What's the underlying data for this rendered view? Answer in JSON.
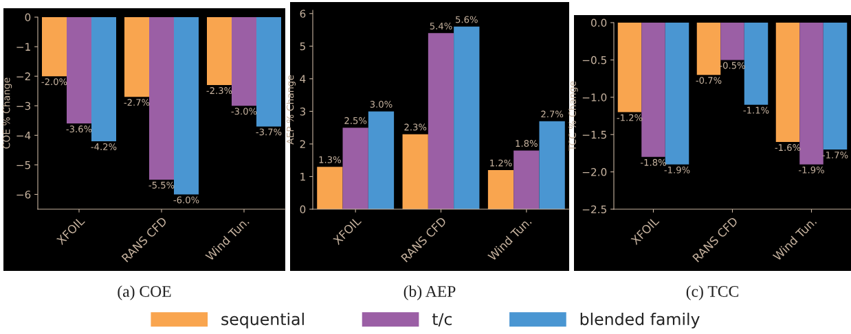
{
  "chart_data": [
    {
      "type": "bar",
      "title": "(a) COE",
      "ylabel": "COE % Change",
      "categories": [
        "XFOIL",
        "RANS CFD",
        "Wind Tun."
      ],
      "ylim": [
        -6.5,
        0
      ],
      "yticks": [
        {
          "value": 0,
          "label": "0"
        },
        {
          "value": -1,
          "label": "−1"
        },
        {
          "value": -2,
          "label": "−2"
        },
        {
          "value": -3,
          "label": "−3"
        },
        {
          "value": -4,
          "label": "−4"
        },
        {
          "value": -5,
          "label": "−5"
        },
        {
          "value": -6,
          "label": "−6"
        }
      ],
      "legend": "bottom",
      "series": [
        {
          "name": "sequential",
          "color": "#f9a54f",
          "values": [
            -2.0,
            -2.7,
            -2.3
          ],
          "value_labels": [
            "-2.0%",
            "-2.7%",
            "-2.3%"
          ]
        },
        {
          "name": "t/c",
          "color": "#9b5fa5",
          "values": [
            -3.6,
            -5.5,
            -3.0
          ],
          "value_labels": [
            "-3.6%",
            "-5.5%",
            "-3.0%"
          ]
        },
        {
          "name": "blended family",
          "color": "#4a96d2",
          "values": [
            -4.2,
            -6.0,
            -3.7
          ],
          "value_labels": [
            "-4.2%",
            "-6.0%",
            "-3.7%"
          ]
        }
      ]
    },
    {
      "type": "bar",
      "title": "(b) AEP",
      "ylabel": "AEP % Change",
      "categories": [
        "XFOIL",
        "RANS CFD",
        "Wind Tun."
      ],
      "ylim": [
        0,
        6.1
      ],
      "yticks": [
        0,
        1,
        2,
        3,
        4,
        5,
        6
      ],
      "series": [
        {
          "color": "#f9a54f",
          "values": [
            1.3,
            2.3,
            1.2
          ],
          "value_labels": [
            "1.3%",
            "2.3%",
            "1.2%"
          ]
        },
        {
          "color": "#9b5fa5",
          "values": [
            2.5,
            5.4,
            1.8
          ],
          "value_labels": [
            "2.5%",
            "5.4%",
            "1.8%"
          ]
        },
        {
          "color": "#4a96d2",
          "values": [
            3.0,
            5.6,
            2.7
          ],
          "value_labels": [
            "3.0%",
            "5.6%",
            "2.7%"
          ]
        }
      ]
    },
    {
      "type": "bar",
      "title": "(c) TCC",
      "ylabel": "TCC % Change",
      "categories": [
        "XFOIL",
        "RANS CFD",
        "Wind Tun."
      ],
      "ylim": [
        -2.5,
        0
      ],
      "yticks": [
        {
          "value": 0,
          "label": "0.0"
        },
        {
          "value": -0.5,
          "label": "−0.5"
        },
        {
          "value": -1,
          "label": "−1.0"
        },
        {
          "value": -1.5,
          "label": "−1.5"
        },
        {
          "value": -2,
          "label": "−2.0"
        },
        {
          "value": -2.5,
          "label": "−2.5"
        }
      ],
      "series": [
        {
          "color": "#f9a54f",
          "values": [
            -1.2,
            -0.7,
            -1.6
          ],
          "value_labels": [
            "-1.2%",
            "-0.7%",
            "-1.6%"
          ]
        },
        {
          "color": "#9b5fa5",
          "values": [
            -1.8,
            -0.5,
            -1.9
          ],
          "value_labels": [
            "-1.8%",
            "-0.5%",
            "-1.9%"
          ]
        },
        {
          "color": "#4a96d2",
          "values": [
            -1.9,
            -1.1,
            -1.7
          ],
          "value_labels": [
            "-1.9%",
            "-1.1%",
            "-1.7%"
          ]
        }
      ]
    }
  ]
}
